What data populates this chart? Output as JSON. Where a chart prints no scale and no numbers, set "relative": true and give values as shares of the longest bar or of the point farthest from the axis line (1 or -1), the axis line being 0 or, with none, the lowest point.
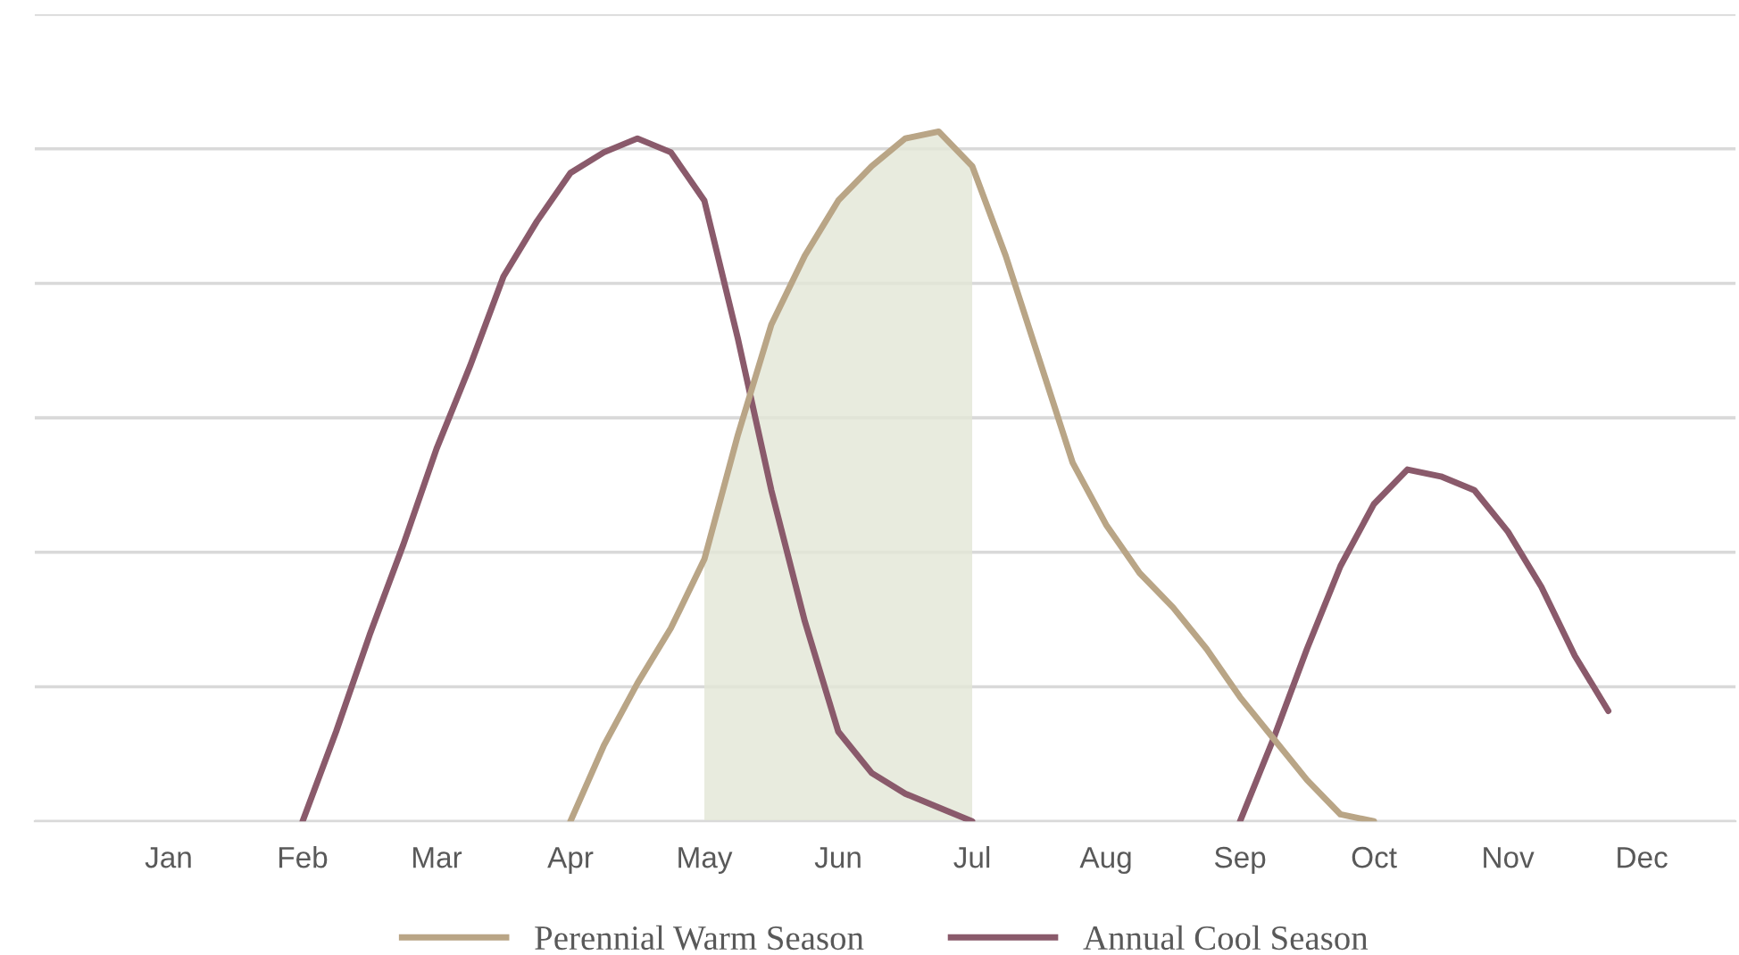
{
  "chart_data": {
    "type": "line",
    "relative": true,
    "categories": [
      "Jan",
      null,
      null,
      null,
      "Feb",
      null,
      null,
      null,
      "Mar",
      null,
      null,
      null,
      "Apr",
      null,
      null,
      null,
      "May",
      null,
      null,
      null,
      "Jun",
      null,
      null,
      null,
      "Jul",
      null,
      null,
      null,
      "Aug",
      null,
      null,
      null,
      "Sep",
      null,
      null,
      null,
      "Oct",
      null,
      null,
      null,
      "Nov",
      null,
      null,
      null,
      "Dec"
    ],
    "grid": "y",
    "legend": "bottom",
    "line_style": "solid",
    "marker": "none",
    "series": [
      {
        "name": "Annual Cool Season",
        "color": "#8a5a6b",
        "values": [
          null,
          null,
          null,
          null,
          0,
          0.13,
          0.27,
          0.4,
          0.54,
          0.66,
          0.79,
          0.87,
          0.94,
          0.97,
          0.99,
          0.97,
          0.9,
          0.7,
          0.48,
          0.29,
          0.13,
          0.07,
          0.04,
          0.02,
          0,
          null,
          null,
          null,
          null,
          null,
          null,
          null,
          0.0,
          0.12,
          0.25,
          0.37,
          0.46,
          0.51,
          0.5,
          0.48,
          0.42,
          0.34,
          0.24,
          0.16,
          null
        ]
      },
      {
        "type": "area",
        "color": "#e2e6d6",
        "values": [
          null,
          null,
          null,
          null,
          null,
          null,
          null,
          null,
          null,
          null,
          null,
          null,
          null,
          null,
          null,
          null,
          0.38,
          0.56,
          0.72,
          0.82,
          0.9,
          0.95,
          0.99,
          1,
          0.95,
          null,
          null,
          null,
          null,
          null,
          null,
          null,
          null,
          null,
          null,
          null,
          null,
          null,
          null,
          null,
          null,
          null,
          null,
          null,
          null
        ]
      },
      {
        "name": "Perennial Warm Season",
        "color": "#b9a586",
        "values": [
          null,
          null,
          null,
          null,
          null,
          null,
          null,
          null,
          null,
          null,
          null,
          null,
          0,
          0.11,
          0.2,
          0.28,
          0.38,
          0.56,
          0.72,
          0.82,
          0.9,
          0.95,
          0.99,
          1,
          0.95,
          0.82,
          0.67,
          0.52,
          0.43,
          0.36,
          0.31,
          0.25,
          0.18,
          0.12,
          0.06,
          0.01,
          0,
          null,
          null,
          null,
          null,
          null,
          null,
          null,
          null
        ]
      }
    ]
  }
}
